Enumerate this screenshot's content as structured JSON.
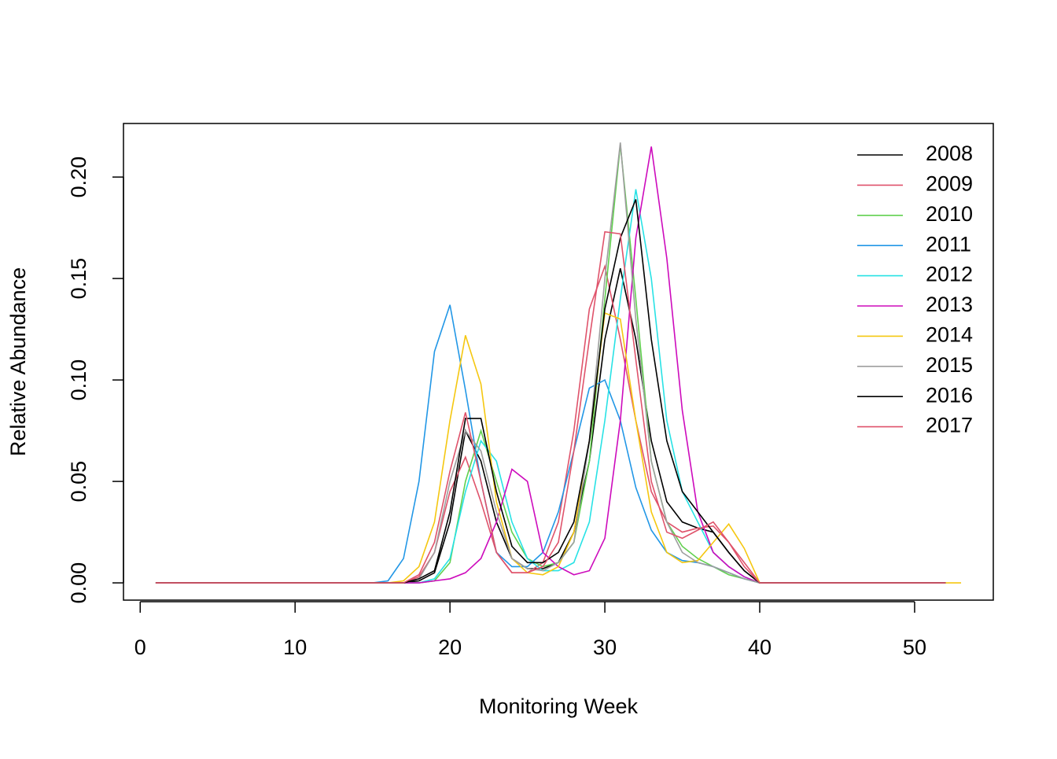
{
  "chart_data": {
    "type": "line",
    "x_label": "Monitoring Week",
    "y_label": "Relative Abundance",
    "x": [
      1,
      2,
      3,
      4,
      5,
      6,
      7,
      8,
      9,
      10,
      11,
      12,
      13,
      14,
      15,
      16,
      17,
      18,
      19,
      20,
      21,
      22,
      23,
      24,
      25,
      26,
      27,
      28,
      29,
      30,
      31,
      32,
      33,
      34,
      35,
      36,
      37,
      38,
      39,
      40,
      41,
      42,
      43,
      44,
      45,
      46,
      47,
      48,
      49,
      50,
      51,
      52,
      53
    ],
    "xlim": [
      -1.08,
      55.08
    ],
    "xticks": [
      0,
      10,
      20,
      30,
      40,
      50
    ],
    "ylim": [
      -0.0085,
      0.2264
    ],
    "yticks": [
      {
        "value": 0,
        "label": "0.00"
      },
      {
        "value": 0.05,
        "label": "0.05"
      },
      {
        "value": 0.1,
        "label": "0.10"
      },
      {
        "value": 0.15,
        "label": "0.15"
      },
      {
        "value": 0.2,
        "label": "0.20"
      }
    ],
    "legend": "topright",
    "grid": false,
    "series": [
      {
        "name": "2008",
        "color": "#000000",
        "values": [
          0,
          0,
          0,
          0,
          0,
          0,
          0,
          0,
          0,
          0,
          0,
          0,
          0,
          0,
          0,
          0,
          0,
          0.001,
          0.005,
          0.03,
          0.075,
          0.06,
          0.03,
          0.012,
          0.007,
          0.007,
          0.01,
          0.025,
          0.06,
          0.12,
          0.155,
          0.12,
          0.07,
          0.04,
          0.03,
          0.027,
          0.025,
          0.015,
          0.006,
          0,
          0,
          0,
          0,
          0,
          0,
          0,
          0,
          0,
          0,
          0,
          0,
          0,
          null
        ]
      },
      {
        "name": "2009",
        "color": "#DF536B",
        "values": [
          0,
          0,
          0,
          0,
          0,
          0,
          0,
          0,
          0,
          0,
          0,
          0,
          0,
          0,
          0,
          0,
          0,
          0.003,
          0.015,
          0.045,
          0.062,
          0.04,
          0.015,
          0.005,
          0.005,
          0.01,
          0.03,
          0.075,
          0.135,
          0.156,
          0.12,
          0.08,
          0.045,
          0.03,
          0.025,
          0.027,
          0.028,
          0.02,
          0.01,
          0,
          0,
          0,
          0,
          0,
          0,
          0,
          0,
          0,
          0,
          0,
          0,
          0,
          null
        ]
      },
      {
        "name": "2010",
        "color": "#61D04F",
        "values": [
          0,
          0,
          0,
          0,
          0,
          0,
          0,
          0,
          0,
          0,
          0,
          0,
          0,
          0,
          0,
          0,
          0,
          0,
          0.001,
          0.01,
          0.05,
          0.075,
          0.05,
          0.025,
          0.012,
          0.008,
          0.01,
          0.02,
          0.06,
          0.14,
          0.216,
          0.14,
          0.06,
          0.03,
          0.018,
          0.012,
          0.008,
          0.004,
          0.002,
          0,
          0,
          0,
          0,
          0,
          0,
          0,
          0,
          0,
          0,
          0,
          0,
          0,
          null
        ]
      },
      {
        "name": "2011",
        "color": "#2297E6",
        "values": [
          0,
          0,
          0,
          0,
          0,
          0,
          0,
          0,
          0,
          0,
          0,
          0,
          0,
          0,
          0,
          0.001,
          0.012,
          0.05,
          0.114,
          0.137,
          0.095,
          0.05,
          0.015,
          0.008,
          0.008,
          0.015,
          0.035,
          0.065,
          0.096,
          0.1,
          0.08,
          0.047,
          0.026,
          0.015,
          0.011,
          0.01,
          0.008,
          0.005,
          0.002,
          0,
          0,
          0,
          0,
          0,
          0,
          0,
          0,
          0,
          0,
          0,
          0,
          0,
          null
        ]
      },
      {
        "name": "2012",
        "color": "#28E2E5",
        "values": [
          0,
          0,
          0,
          0,
          0,
          0,
          0,
          0,
          0,
          0,
          0,
          0,
          0,
          0,
          0,
          0,
          0,
          0,
          0.002,
          0.012,
          0.045,
          0.07,
          0.06,
          0.03,
          0.012,
          0.006,
          0.006,
          0.01,
          0.03,
          0.08,
          0.14,
          0.194,
          0.15,
          0.08,
          0.045,
          0.03,
          0.015,
          0.008,
          0.003,
          0,
          0,
          0,
          0,
          0,
          0,
          0,
          0,
          0,
          0,
          0,
          0,
          0,
          null
        ]
      },
      {
        "name": "2013",
        "color": "#CD0BBC",
        "values": [
          0,
          0,
          0,
          0,
          0,
          0,
          0,
          0,
          0,
          0,
          0,
          0,
          0,
          0,
          0,
          0,
          0,
          0,
          0.001,
          0.002,
          0.005,
          0.012,
          0.03,
          0.056,
          0.05,
          0.015,
          0.008,
          0.004,
          0.006,
          0.022,
          0.08,
          0.17,
          0.215,
          0.16,
          0.085,
          0.035,
          0.015,
          0.008,
          0.003,
          0,
          0,
          0,
          0,
          0,
          0,
          0,
          0,
          0,
          0,
          0,
          0,
          0,
          null
        ]
      },
      {
        "name": "2014",
        "color": "#F5C710",
        "values": [
          0,
          0,
          0,
          0,
          0,
          0,
          0,
          0,
          0,
          0,
          0,
          0,
          0,
          0,
          0,
          0,
          0.001,
          0.008,
          0.03,
          0.08,
          0.122,
          0.098,
          0.04,
          0.012,
          0.005,
          0.004,
          0.008,
          0.025,
          0.07,
          0.133,
          0.13,
          0.08,
          0.035,
          0.015,
          0.01,
          0.011,
          0.02,
          0.029,
          0.017,
          0,
          0,
          0,
          0,
          0,
          0,
          0,
          0,
          0,
          0,
          0,
          0,
          0,
          0
        ]
      },
      {
        "name": "2015",
        "color": "#9E9E9E",
        "values": [
          0,
          0,
          0,
          0,
          0,
          0,
          0,
          0,
          0,
          0,
          0,
          0,
          0,
          0,
          0,
          0,
          0,
          0.002,
          0.015,
          0.05,
          0.075,
          0.065,
          0.035,
          0.012,
          0.007,
          0.006,
          0.01,
          0.02,
          0.07,
          0.15,
          0.217,
          0.13,
          0.06,
          0.03,
          0.015,
          0.01,
          0.008,
          0.005,
          0.002,
          0,
          0,
          0,
          0,
          0,
          0,
          0,
          0,
          0,
          0,
          0,
          0,
          0,
          null
        ]
      },
      {
        "name": "2016",
        "color": "#000000",
        "values": [
          0,
          0,
          0,
          0,
          0,
          0,
          0,
          0,
          0,
          0,
          0,
          0,
          0,
          0,
          0,
          0,
          0,
          0.002,
          0.006,
          0.035,
          0.081,
          0.081,
          0.045,
          0.018,
          0.01,
          0.01,
          0.015,
          0.03,
          0.07,
          0.135,
          0.17,
          0.189,
          0.12,
          0.07,
          0.045,
          0.035,
          0.025,
          0.015,
          0.006,
          0,
          0,
          0,
          0,
          0,
          0,
          0,
          0,
          0,
          0,
          0,
          0,
          0,
          null
        ]
      },
      {
        "name": "2017",
        "color": "#DF536B",
        "values": [
          0,
          0,
          0,
          0,
          0,
          0,
          0,
          0,
          0,
          0,
          0,
          0,
          0,
          0,
          0,
          0,
          0,
          0.004,
          0.02,
          0.055,
          0.084,
          0.05,
          0.015,
          0.005,
          0.005,
          0.008,
          0.02,
          0.065,
          0.12,
          0.173,
          0.172,
          0.11,
          0.05,
          0.025,
          0.022,
          0.026,
          0.03,
          0.02,
          0.008,
          0,
          0,
          0,
          0,
          0,
          0,
          0,
          0,
          0,
          0,
          0,
          0,
          0,
          null
        ]
      }
    ]
  }
}
